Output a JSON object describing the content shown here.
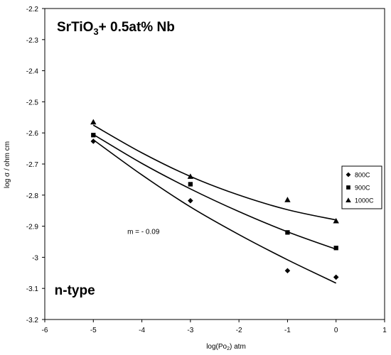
{
  "chart_data": {
    "type": "scatter",
    "title_main": "SrTiO",
    "title_sub": "3",
    "title_rest": "+ 0.5at% Nb",
    "xlabel_main": "log(Po",
    "xlabel_sub": "2",
    "xlabel_rest": ") atm",
    "ylabel": "log σ / ohm cm",
    "xlim": [
      -6,
      1
    ],
    "ylim": [
      -3.2,
      -2.2
    ],
    "xticks": [
      "-6",
      "-5",
      "-4",
      "-3",
      "-2",
      "-1",
      "0",
      "1"
    ],
    "yticks": [
      "-2.2",
      "-2.3",
      "-2.4",
      "-2.5",
      "-2.6",
      "-2.7",
      "-2.8",
      "-2.9",
      "-3",
      "-3.1",
      "-3.2"
    ],
    "series": [
      {
        "name": "800C",
        "marker": "diamond",
        "x": [
          -5,
          -3,
          -1,
          0
        ],
        "y": [
          -2.627,
          -2.818,
          -3.043,
          -3.064
        ],
        "fit": {
          "x": [
            -5,
            -4,
            -3,
            -2,
            -1,
            0
          ],
          "y": [
            -2.622,
            -2.735,
            -2.838,
            -2.927,
            -3.008,
            -3.083
          ]
        }
      },
      {
        "name": "900C",
        "marker": "square",
        "x": [
          -5,
          -3,
          -1,
          0
        ],
        "y": [
          -2.607,
          -2.765,
          -2.92,
          -2.97
        ],
        "fit": {
          "x": [
            -5,
            -4,
            -3,
            -2,
            -1,
            0
          ],
          "y": [
            -2.605,
            -2.698,
            -2.78,
            -2.853,
            -2.918,
            -2.974
          ]
        }
      },
      {
        "name": "1000C",
        "marker": "triangle",
        "x": [
          -5,
          -3,
          -1,
          0
        ],
        "y": [
          -2.565,
          -2.74,
          -2.815,
          -2.883
        ],
        "fit": {
          "x": [
            -5,
            -4,
            -3,
            -2,
            -1,
            0
          ],
          "y": [
            -2.575,
            -2.664,
            -2.74,
            -2.8,
            -2.847,
            -2.88
          ]
        }
      }
    ],
    "annotations": [
      {
        "text": "m = - 0.09",
        "x": -4.3,
        "y": -2.925
      },
      {
        "text": "n-type",
        "x": -5.8,
        "y": -3.12
      }
    ],
    "legend_position": "right",
    "grid": false
  }
}
